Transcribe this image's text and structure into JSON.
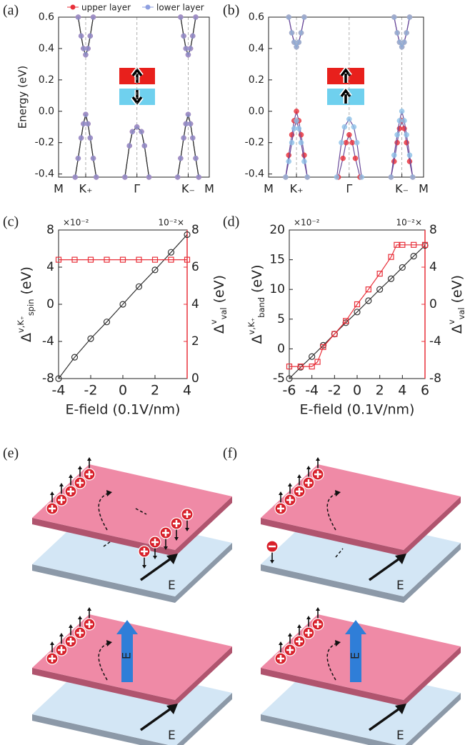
{
  "chart_data": [
    {
      "type": "line",
      "label": "(a)",
      "ylabel": "Energy (eV)",
      "xlim": [
        0,
        1
      ],
      "ylim": [
        -0.42,
        0.6
      ],
      "xticks": [
        {
          "value": 0,
          "label": "M"
        },
        {
          "value": 0.18,
          "label": "K₊"
        },
        {
          "value": 0.52,
          "label": "Γ"
        },
        {
          "value": 0.86,
          "label": "K₋"
        },
        {
          "value": 1,
          "label": "M"
        }
      ],
      "yticks": [
        -0.4,
        -0.2,
        {
          "value": 0,
          "label": "0.0"
        },
        0.2,
        0.4,
        0.6
      ],
      "xgrid": true,
      "legend": "top",
      "line_color": "#333333",
      "series": [
        {
          "name": "upper layer",
          "color": "#e8303a",
          "marker": "circle",
          "filled": true,
          "x": [
            0.11,
            0.13,
            0.15,
            0.165,
            0.18,
            0.195,
            0.21,
            0.23,
            0.25,
            null,
            0.13,
            0.15,
            0.165,
            0.18,
            0.195,
            0.21,
            0.23,
            null,
            0.44,
            0.47,
            0.49,
            0.52,
            0.55,
            0.57,
            0.6,
            null,
            0.79,
            0.81,
            0.83,
            0.845,
            0.86,
            0.875,
            0.89,
            0.91,
            0.93,
            null,
            0.81,
            0.83,
            0.845,
            0.86,
            0.875,
            0.89,
            0.91
          ],
          "values": [
            -0.42,
            -0.3,
            -0.17,
            -0.08,
            -0.02,
            -0.08,
            -0.17,
            -0.3,
            -0.42,
            null,
            0.6,
            0.48,
            0.4,
            0.36,
            0.4,
            0.48,
            0.6,
            null,
            -0.42,
            -0.22,
            -0.13,
            -0.1,
            -0.13,
            -0.22,
            -0.42,
            null,
            -0.42,
            -0.3,
            -0.17,
            -0.08,
            -0.02,
            -0.08,
            -0.17,
            -0.3,
            -0.42,
            null,
            0.6,
            0.48,
            0.4,
            0.36,
            0.4,
            0.48,
            0.6
          ]
        },
        {
          "name": "lower layer",
          "color": "#8e9fe0",
          "marker": "circle",
          "filled": true,
          "x": [
            0.11,
            0.13,
            0.15,
            0.165,
            0.18,
            0.195,
            0.21,
            0.23,
            0.25,
            null,
            0.13,
            0.15,
            0.165,
            0.18,
            0.195,
            0.21,
            0.23,
            null,
            0.44,
            0.47,
            0.49,
            0.52,
            0.55,
            0.57,
            0.6,
            null,
            0.79,
            0.81,
            0.83,
            0.845,
            0.86,
            0.875,
            0.89,
            0.91,
            0.93,
            null,
            0.81,
            0.83,
            0.845,
            0.86,
            0.875,
            0.89,
            0.91
          ],
          "values": [
            -0.42,
            -0.3,
            -0.17,
            -0.08,
            -0.02,
            -0.08,
            -0.17,
            -0.3,
            -0.42,
            null,
            0.6,
            0.48,
            0.4,
            0.36,
            0.4,
            0.48,
            0.6,
            null,
            -0.42,
            -0.22,
            -0.13,
            -0.1,
            -0.13,
            -0.22,
            -0.42,
            null,
            -0.42,
            -0.3,
            -0.17,
            -0.08,
            -0.02,
            -0.08,
            -0.17,
            -0.3,
            -0.42,
            null,
            0.6,
            0.48,
            0.4,
            0.36,
            0.4,
            0.48,
            0.6
          ]
        }
      ]
    },
    {
      "type": "line",
      "label": "(b)",
      "xlim": [
        0,
        1
      ],
      "ylim": [
        -0.42,
        0.6
      ],
      "xticks": [
        {
          "value": 0,
          "label": "M"
        },
        {
          "value": 0.18,
          "label": "K₊"
        },
        {
          "value": 0.52,
          "label": "Γ"
        },
        {
          "value": 0.86,
          "label": "K₋"
        },
        {
          "value": 1,
          "label": "M"
        }
      ],
      "yticks": [
        -0.4,
        -0.2,
        {
          "value": 0,
          "label": "0.0"
        },
        0.2,
        0.4,
        0.6
      ],
      "xgrid": true,
      "line_color": "#6a4a9a",
      "series": [
        {
          "color": "#e8303a",
          "marker": "circle",
          "filled": true,
          "x": [
            0.11,
            0.13,
            0.15,
            0.165,
            0.18,
            0.195,
            0.21,
            0.23,
            0.25,
            null,
            0.13,
            0.15,
            0.165,
            0.18,
            0.195,
            0.21,
            0.23,
            null,
            0.45,
            0.48,
            0.5,
            0.52,
            0.54,
            0.56,
            0.59,
            null,
            0.79,
            0.81,
            0.83,
            0.845,
            0.86,
            0.875,
            0.89,
            0.91,
            0.93,
            null,
            0.81,
            0.83,
            0.845,
            0.86,
            0.875,
            0.89,
            0.91
          ],
          "values": [
            -0.42,
            -0.28,
            -0.15,
            -0.06,
            0,
            -0.06,
            -0.15,
            -0.28,
            -0.42,
            null,
            0.6,
            0.5,
            0.44,
            0.41,
            0.44,
            0.5,
            0.6,
            null,
            -0.42,
            -0.3,
            -0.2,
            -0.15,
            -0.2,
            -0.3,
            -0.42,
            null,
            -0.42,
            -0.32,
            -0.2,
            -0.11,
            -0.06,
            -0.11,
            -0.2,
            -0.32,
            -0.42,
            null,
            0.6,
            0.5,
            0.44,
            0.41,
            0.44,
            0.5,
            0.6
          ]
        },
        {
          "color": "#8ec2e8",
          "marker": "circle",
          "filled": true,
          "x": [
            0.11,
            0.13,
            0.15,
            0.165,
            0.18,
            0.195,
            0.21,
            0.23,
            0.25,
            null,
            0.13,
            0.15,
            0.165,
            0.18,
            0.195,
            0.21,
            0.23,
            null,
            0.44,
            0.47,
            0.49,
            0.52,
            0.55,
            0.57,
            0.6,
            null,
            0.79,
            0.81,
            0.83,
            0.845,
            0.86,
            0.875,
            0.89,
            0.91,
            0.93,
            null,
            0.81,
            0.83,
            0.845,
            0.86,
            0.875,
            0.89,
            0.91
          ],
          "values": [
            -0.42,
            -0.32,
            -0.2,
            -0.11,
            -0.06,
            -0.11,
            -0.2,
            -0.32,
            -0.42,
            null,
            0.6,
            0.5,
            0.44,
            0.41,
            0.44,
            0.5,
            0.6,
            null,
            -0.42,
            -0.2,
            -0.1,
            -0.05,
            -0.1,
            -0.2,
            -0.42,
            null,
            -0.42,
            -0.28,
            -0.15,
            -0.06,
            0,
            -0.06,
            -0.15,
            -0.28,
            -0.42,
            null,
            0.6,
            0.5,
            0.44,
            0.41,
            0.44,
            0.5,
            0.6
          ]
        }
      ]
    },
    {
      "type": "line",
      "label": "(c)",
      "xlabel": "E-field (0.1V/nm)",
      "ylabel": {
        "base": "Δ",
        "sup": "v,K₊",
        "sub": "spin",
        "unit": " (eV)"
      },
      "y2label": {
        "base": "Δ",
        "sup": "v",
        "sub": "val",
        "unit": " (eV)"
      },
      "yscale_label": "×10⁻²",
      "y2scale_label": "10⁻²×",
      "xlim": [
        -4,
        4
      ],
      "ylim": [
        -8,
        8
      ],
      "y2lim": [
        0,
        8
      ],
      "xticks": [
        -4,
        -2,
        0,
        2,
        4
      ],
      "yticks": [
        -8,
        -4,
        0,
        4,
        8
      ],
      "y2ticks": [
        0,
        2,
        4,
        6,
        8
      ],
      "y2color": "#e8303a",
      "line_color": null,
      "series": [
        {
          "color": "#333333",
          "marker": "circle",
          "filled": false,
          "x": [
            -4,
            -3,
            -2,
            -1,
            0,
            1,
            2,
            3,
            4
          ],
          "values": [
            -8,
            -5.7,
            -3.7,
            -1.9,
            0,
            1.9,
            3.7,
            5.6,
            7.5
          ]
        },
        {
          "color": "#e8303a",
          "marker": "square",
          "filled": false,
          "axis": "y2",
          "x": [
            -4,
            -3,
            -2,
            -1,
            0,
            1,
            2,
            3,
            4
          ],
          "values": [
            6.4,
            6.4,
            6.4,
            6.4,
            6.4,
            6.4,
            6.4,
            6.4,
            6.4
          ]
        }
      ]
    },
    {
      "type": "line",
      "label": "(d)",
      "xlabel": "E-field (0.1V/nm)",
      "ylabel": {
        "base": "Δ",
        "sup": "v,K₊",
        "sub": "band",
        "unit": " (eV)"
      },
      "y2label": {
        "base": "Δ",
        "sup": "v",
        "sub": "val",
        "unit": " (eV)"
      },
      "yscale_label": "×10⁻²",
      "y2scale_label": "10⁻²×",
      "xlim": [
        -6,
        6
      ],
      "ylim": [
        -5,
        20
      ],
      "y2lim": [
        -8,
        8
      ],
      "xticks": [
        -6,
        -4,
        -2,
        0,
        2,
        4,
        6
      ],
      "yticks": [
        -5,
        0,
        5,
        10,
        15,
        20
      ],
      "y2ticks": [
        -8,
        -4,
        0,
        4,
        8
      ],
      "y2color": "#e8303a",
      "line_color": null,
      "series": [
        {
          "color": "#333333",
          "marker": "circle",
          "filled": false,
          "x": [
            -6,
            -5,
            -4,
            -3,
            -2,
            -1,
            0,
            1,
            2,
            3,
            4,
            5,
            6
          ],
          "values": [
            -5,
            -3.1,
            -1.3,
            0.6,
            2.5,
            4.4,
            6.2,
            8.1,
            10,
            11.8,
            13.7,
            15.6,
            17.4
          ]
        },
        {
          "color": "#e8303a",
          "marker": "square",
          "filled": false,
          "axis": "y2",
          "x": [
            -6,
            -5,
            -4,
            -3.5,
            -3,
            -2,
            -1,
            0,
            1,
            2,
            3,
            3.5,
            4,
            5,
            6
          ],
          "values": [
            -6.7,
            -6.7,
            -6.7,
            -6.2,
            -4.6,
            -3.2,
            -1.8,
            0,
            1.6,
            3.3,
            5.1,
            6.4,
            6.4,
            6.4,
            6.4
          ]
        }
      ]
    }
  ],
  "diagrams": [
    {
      "label": "(e)",
      "top_field": "E",
      "bottom_field": "E",
      "normal_field": "E"
    },
    {
      "label": "(f)",
      "top_field": "E",
      "bottom_field": "E",
      "normal_field": "E"
    }
  ]
}
